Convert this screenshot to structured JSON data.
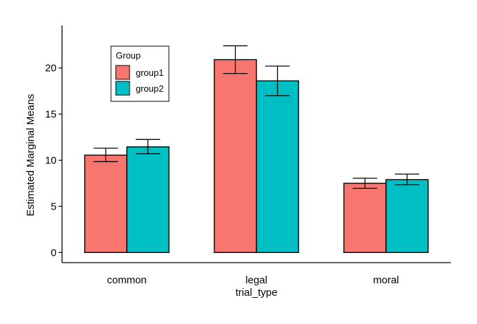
{
  "chart_data": {
    "type": "bar",
    "xlabel": "trial_type",
    "ylabel": "Estimated Marginal Means",
    "categories": [
      "common",
      "legal",
      "moral"
    ],
    "ylim": [
      -1.1,
      24.6
    ],
    "yticks": [
      0,
      5,
      10,
      15,
      20
    ],
    "grid": false,
    "legend": {
      "title": "Group",
      "position": "top-left"
    },
    "series": [
      {
        "name": "group1",
        "color": "#F8766D",
        "values": [
          10.55,
          20.9,
          7.5
        ],
        "error_low": [
          9.85,
          19.4,
          6.95
        ],
        "error_high": [
          11.3,
          22.4,
          8.05
        ]
      },
      {
        "name": "group2",
        "color": "#00BFC4",
        "values": [
          11.45,
          18.6,
          7.9
        ],
        "error_low": [
          10.7,
          17.0,
          7.35
        ],
        "error_high": [
          12.25,
          20.2,
          8.5
        ]
      }
    ]
  }
}
